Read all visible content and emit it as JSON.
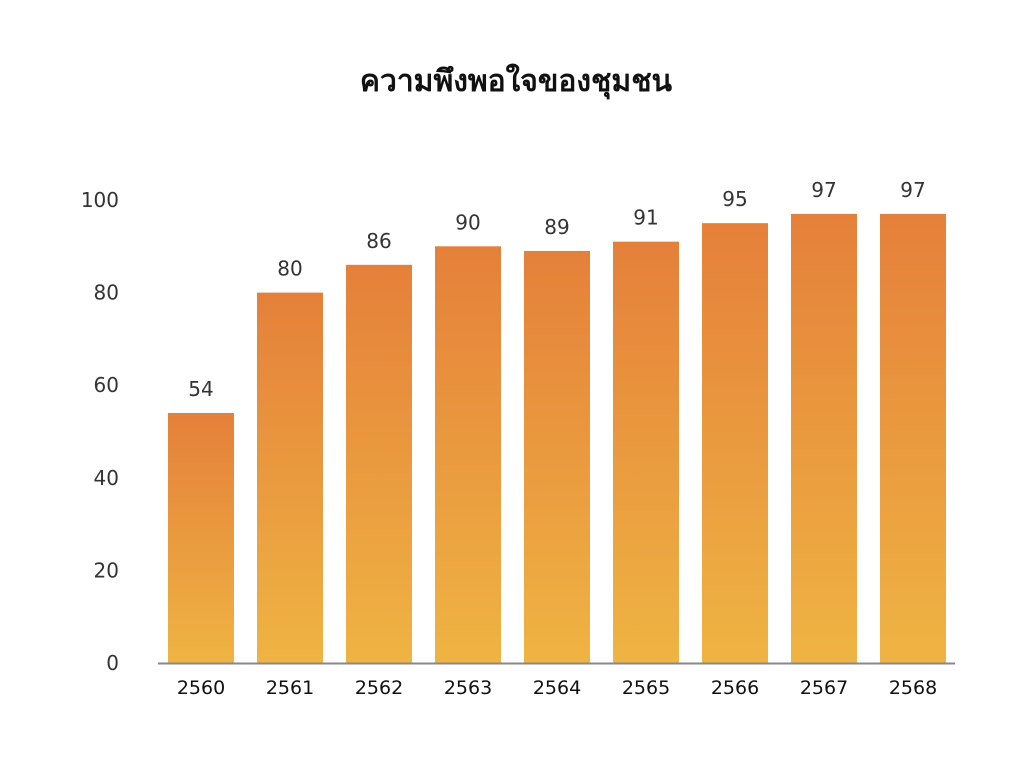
{
  "chart_data": {
    "type": "bar",
    "title": "ความพึงพอใจของชุมชน",
    "xlabel": "",
    "ylabel": "",
    "categories": [
      "2560",
      "2561",
      "2562",
      "2563",
      "2564",
      "2565",
      "2566",
      "2567",
      "2568"
    ],
    "values": [
      54,
      80,
      86,
      90,
      89,
      91,
      95,
      97,
      97
    ],
    "data_labels": [
      "54",
      "80",
      "86",
      "90",
      "89",
      "91",
      "95",
      "97",
      "97"
    ],
    "ylim": [
      0,
      100
    ],
    "yticks": [
      "0",
      "20",
      "40",
      "60",
      "80",
      "100"
    ],
    "grid": false,
    "colors": {
      "bar_top": "#E5803A",
      "bar_bottom": "#EFB443",
      "axis": "#888888"
    }
  }
}
